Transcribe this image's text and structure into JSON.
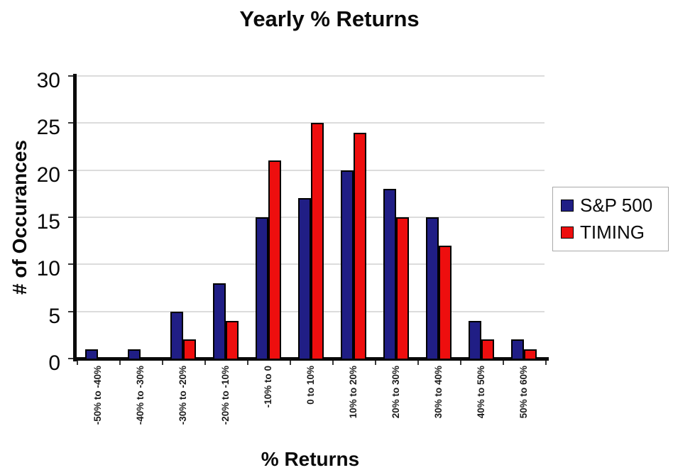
{
  "chart_data": {
    "type": "bar",
    "title": "Yearly % Returns",
    "xlabel": "% Returns",
    "ylabel": "# of Occurances",
    "categories": [
      "-50% to -40%",
      "-40% to -30%",
      "-30% to -20%",
      "-20% to -10%",
      "-10% to 0",
      "0 to 10%",
      "10% to 20%",
      "20% to 30%",
      "30% to 40%",
      "40% to 50%",
      "50% to 60%"
    ],
    "series": [
      {
        "name": "S&P 500",
        "color": "#201E85",
        "values": [
          1,
          1,
          5,
          8,
          15,
          17,
          20,
          18,
          15,
          4,
          2
        ]
      },
      {
        "name": "TIMING",
        "color": "#EE0E0E",
        "values": [
          0,
          0,
          2,
          4,
          21,
          25,
          24,
          15,
          12,
          2,
          1
        ]
      }
    ],
    "ylim": [
      0,
      30
    ],
    "ytick_step": 5,
    "grid": true,
    "gridline_color": "#dcdcdc",
    "legend_position": "right",
    "axis_color": "#0a0a0a"
  }
}
